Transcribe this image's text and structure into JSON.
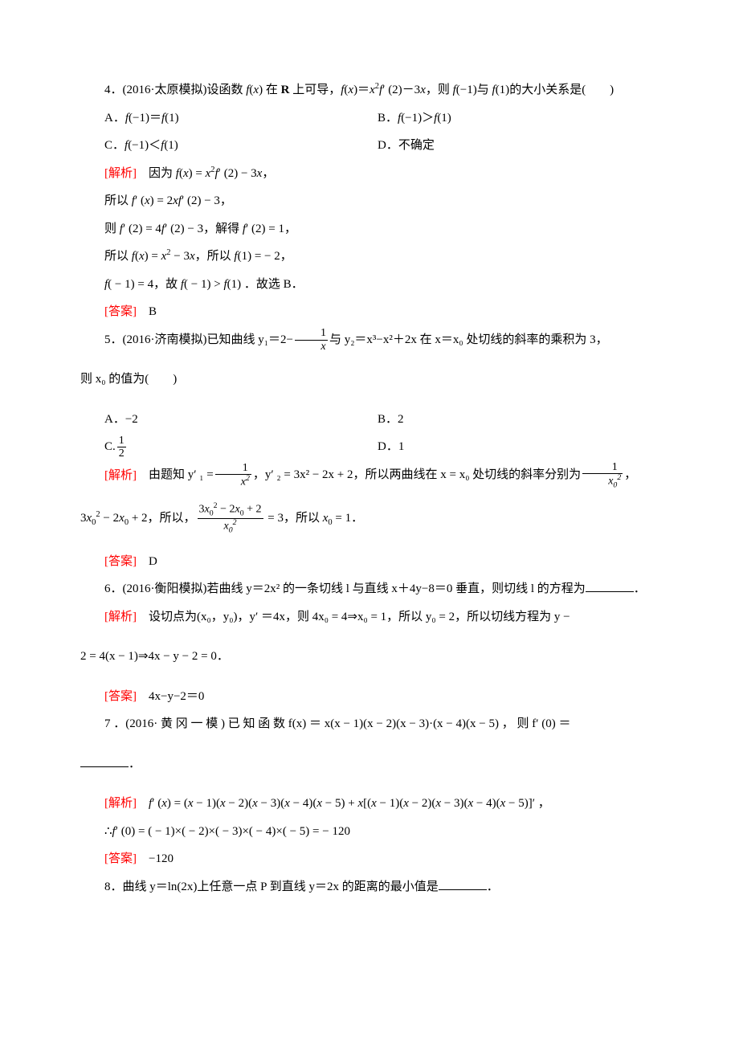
{
  "text_color": "#000000",
  "accent_color": "#ff0000",
  "background_color": "#ffffff",
  "body_fontsize": 15,
  "q4": {
    "prompt_prefix": "4．(2016·太原模拟)设函数 ",
    "prompt_mid": " 在 ",
    "bold_R": "R",
    "prompt_mid2": " 上可导，",
    "prompt_eq": "f(x)＝x²f′ (2)－3x",
    "prompt_mid3": "，则 ",
    "f_neg1": "f(−1)",
    "prompt_mid4": "与 ",
    "f_1": "f(1)",
    "prompt_end": "的大小关系是(　　)",
    "optA": "A．f(−1)＝f(1)",
    "optB": "B．f(−1)＞f(1)",
    "optC": "C．f(−1)＜f(1)",
    "optD": "D．不确定",
    "analysis_label": "[解析]",
    "a1": "　因为 f(x) = x²f′ (2) − 3x，",
    "a2": "所以 f′ (x) = 2xf′ (2) − 3，",
    "a3": "则 f′ (2) = 4f′ (2) − 3，解得 f′ (2) = 1，",
    "a4": "所以 f(x) = x² − 3x，所以 f(1) = − 2，",
    "a5": "f( − 1) = 4，故 f( − 1) > f(1) ．故选 B．",
    "answer_label": "[答案]",
    "answer": "　B"
  },
  "q5": {
    "prompt_prefix": "5．(2016·济南模拟)已知曲线 y₁＝2−",
    "prompt_mid": "与 y₂＝x³−x²＋2x 在 x＝x₀ 处切线的斜率的乘积为 3，",
    "prompt_line2": "则 x₀ 的值为(　　)",
    "frac1_num": "1",
    "frac1_den": "x",
    "optA": "A．−2",
    "optB": "B．2",
    "optC_prefix": "C.",
    "optC_num": "1",
    "optC_den": "2",
    "optD": "D．1",
    "analysis_label": "[解析]",
    "a1_pre": "　由题知 y′ ₁ =",
    "a1_f1_num": "1",
    "a1_f1_den": "x²",
    "a1_mid": "，y′ ₂ = 3x² − 2x + 2，所以两曲线在 x = x₀ 处切线的斜率分别为",
    "a1_f2_num": "1",
    "a1_f2_den": "x₀²",
    "a1_end": "，",
    "a2_pre": "3x₀² − 2x₀ + 2，所以，",
    "a2_f_num": "3x₀² − 2x₀ + 2",
    "a2_f_den": "x₀²",
    "a2_end": " = 3，所以 x₀ = 1．",
    "answer_label": "[答案]",
    "answer": "　D"
  },
  "q6": {
    "prompt": "6．(2016·衡阳模拟)若曲线 y＝2x² 的一条切线 l 与直线 x＋4y−8＝0 垂直，则切线 l 的方程为",
    "suffix": "．",
    "analysis_label": "[解析]",
    "a1": "　设切点为(x₀，y₀)，y′ ＝4x，则 4x₀ = 4⇒x₀ = 1，所以 y₀ = 2，所以切线方程为 y −",
    "a2": "2 = 4(x − 1)⇒4x − y − 2 = 0．",
    "answer_label": "[答案]",
    "answer": "　4x−y−2＝0"
  },
  "q7": {
    "prompt_pre": "7 ．(2016· 黄 冈 一 模 ) 已 知 函 数 f(x) ＝ x(x − 1)(x − 2)(x − 3)·(x − 4)(x − 5) ， 则 f′ (0) ＝",
    "suffix": "．",
    "analysis_label": "[解析]",
    "a1": "　f′ (x) = (x − 1)(x − 2)(x − 3)(x − 4)(x − 5) + x[(x − 1)(x − 2)(x − 3)(x − 4)(x − 5)]′ ，",
    "a2": "∴f′ (0) = ( − 1)×( − 2)×( − 3)×( − 4)×( − 5) = − 120",
    "answer_label": "[答案]",
    "answer": "　−120"
  },
  "q8": {
    "prompt_pre": "8．曲线 y＝ln(2x)上任意一点 P 到直线 y＝2x 的距离的最小值是",
    "suffix": "．"
  }
}
